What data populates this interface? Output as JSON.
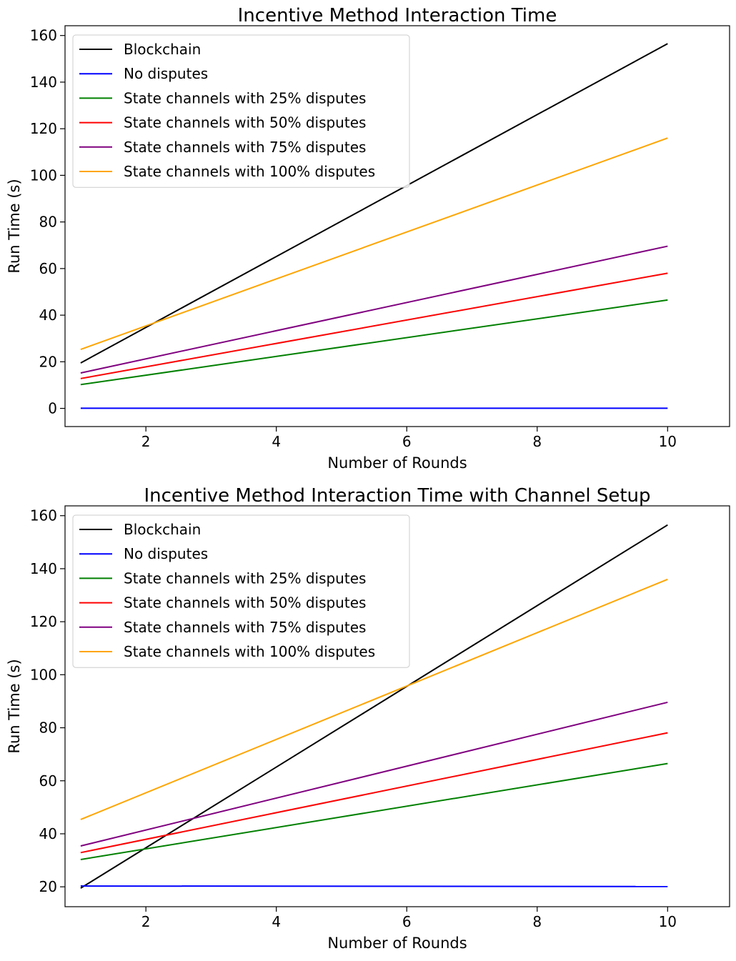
{
  "chart_data": [
    {
      "type": "line",
      "title": "Incentive Method Interaction Time",
      "xlabel": "Number of Rounds",
      "ylabel": "Run Time (s)",
      "xlim": [
        0.76,
        10.95
      ],
      "ylim": [
        -7.8,
        164.2
      ],
      "xticks": [
        2,
        4,
        6,
        8,
        10
      ],
      "yticks": [
        0,
        20,
        40,
        60,
        80,
        100,
        120,
        140,
        160
      ],
      "grid": false,
      "legend": "top-left",
      "series": [
        {
          "name": "Blockchain",
          "color": "#000000",
          "x": [
            1,
            10
          ],
          "y": [
            19.5,
            156.5
          ]
        },
        {
          "name": "No disputes",
          "color": "#0000ff",
          "x": [
            1,
            10
          ],
          "y": [
            0.05,
            0.05
          ]
        },
        {
          "name": "State channels with 25% disputes",
          "color": "#008000",
          "x": [
            1,
            10
          ],
          "y": [
            10.2,
            46.5
          ]
        },
        {
          "name": "State channels with 50% disputes",
          "color": "#ff0000",
          "x": [
            1,
            10
          ],
          "y": [
            12.8,
            58.0
          ]
        },
        {
          "name": "State channels with 75% disputes",
          "color": "#800080",
          "x": [
            1,
            10
          ],
          "y": [
            15.2,
            69.6
          ]
        },
        {
          "name": "State channels with 100% disputes",
          "color": "#ffa500",
          "x": [
            1,
            10
          ],
          "y": [
            25.3,
            116.0
          ]
        }
      ]
    },
    {
      "type": "line",
      "title": "Incentive Method Interaction Time with Channel Setup",
      "xlabel": "Number of Rounds",
      "ylabel": "Run Time (s)",
      "xlim": [
        0.76,
        10.95
      ],
      "ylim": [
        12.5,
        163.7
      ],
      "xticks": [
        2,
        4,
        6,
        8,
        10
      ],
      "yticks": [
        20,
        40,
        60,
        80,
        100,
        120,
        140,
        160
      ],
      "grid": false,
      "legend": "top-left",
      "series": [
        {
          "name": "Blockchain",
          "color": "#000000",
          "x": [
            1,
            10
          ],
          "y": [
            19.5,
            156.5
          ]
        },
        {
          "name": "No disputes",
          "color": "#0000ff",
          "x": [
            1,
            10
          ],
          "y": [
            20.3,
            20.1
          ]
        },
        {
          "name": "State channels with 25% disputes",
          "color": "#008000",
          "x": [
            1,
            10
          ],
          "y": [
            30.3,
            66.5
          ]
        },
        {
          "name": "State channels with 50% disputes",
          "color": "#ff0000",
          "x": [
            1,
            10
          ],
          "y": [
            32.9,
            78.1
          ]
        },
        {
          "name": "State channels with 75% disputes",
          "color": "#800080",
          "x": [
            1,
            10
          ],
          "y": [
            35.4,
            89.6
          ]
        },
        {
          "name": "State channels with 100% disputes",
          "color": "#ffa500",
          "x": [
            1,
            10
          ],
          "y": [
            45.4,
            136.0
          ]
        }
      ]
    }
  ]
}
